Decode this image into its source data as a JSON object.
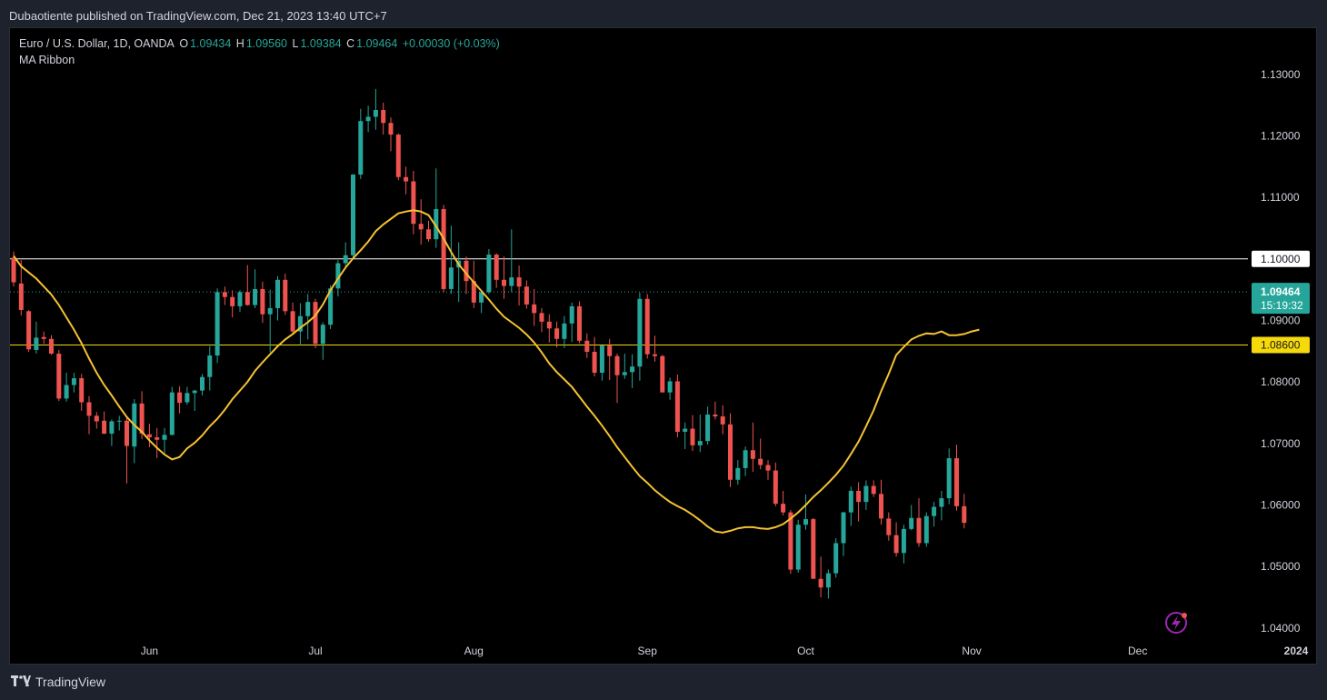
{
  "publisher_line": "Dubaotiente published on TradingView.com, Dec 21, 2023 13:40 UTC+7",
  "legend": {
    "symbol": "Euro / U.S. Dollar, 1D, OANDA",
    "o_label": "O",
    "o": "1.09434",
    "h_label": "H",
    "h": "1.09560",
    "l_label": "L",
    "l": "1.09384",
    "c_label": "C",
    "c": "1.09464",
    "change": "+0.00030 (+0.03%)",
    "indicator": "MA Ribbon"
  },
  "footer": {
    "brand": "TradingView",
    "logo": "tradingview-logo-icon"
  },
  "colors": {
    "background": "#000000",
    "frame": "#1e222d",
    "up": "#26a69a",
    "down": "#ef5350",
    "ma": "#f5c231",
    "hline_white": "#ffffff",
    "hline_yellow": "#f5d90a",
    "price_tag": "#26a69a"
  },
  "chart_data": {
    "type": "candlestick",
    "symbol": "EURUSD",
    "timeframe": "1D",
    "ylim": [
      1.0385,
      1.1375
    ],
    "yticks": [
      "1.13000",
      "1.12000",
      "1.11000",
      "1.10000",
      "1.09000",
      "1.08000",
      "1.07000",
      "1.06000",
      "1.05000",
      "1.04000"
    ],
    "xticks": [
      {
        "label": "Jun",
        "index": 18
      },
      {
        "label": "Jul",
        "index": 40
      },
      {
        "label": "Aug",
        "index": 61
      },
      {
        "label": "Sep",
        "index": 84
      },
      {
        "label": "Oct",
        "index": 105
      },
      {
        "label": "Nov",
        "index": 127
      },
      {
        "label": "Dec",
        "index": 149
      },
      {
        "label": "2024",
        "index": 170
      }
    ],
    "horizontal_lines": [
      {
        "price": 1.1,
        "label": "1.10000",
        "color": "#ffffff"
      },
      {
        "price": 1.086,
        "label": "1.08600",
        "color": "#f5d90a"
      }
    ],
    "last_price": {
      "price": 1.09464,
      "label": "1.09464",
      "countdown": "15:19:32"
    },
    "indicator": {
      "name": "MA Ribbon",
      "color": "#f5c231",
      "values": [
        1.1005,
        1.0988,
        1.0978,
        1.0968,
        1.0955,
        1.0942,
        1.0925,
        1.0905,
        1.0885,
        1.0863,
        1.0838,
        1.0815,
        1.0795,
        1.0778,
        1.076,
        1.0743,
        1.073,
        1.0719,
        1.0705,
        1.0693,
        1.0682,
        1.0674,
        1.0678,
        1.0692,
        1.0701,
        1.0713,
        1.0728,
        1.074,
        1.0755,
        1.0772,
        1.0786,
        1.08,
        1.0818,
        1.0832,
        1.0845,
        1.0858,
        1.0869,
        1.0878,
        1.0888,
        1.0897,
        1.0908,
        1.0926,
        1.0949,
        1.0968,
        1.0986,
        1.1001,
        1.1014,
        1.1028,
        1.1045,
        1.1056,
        1.1065,
        1.1074,
        1.1077,
        1.1079,
        1.1077,
        1.1071,
        1.1053,
        1.1033,
        1.1011,
        1.0991,
        1.0976,
        1.0962,
        1.0948,
        1.0934,
        1.0919,
        1.0906,
        1.0897,
        1.0888,
        1.0877,
        1.0864,
        1.0848,
        1.083,
        1.0816,
        1.0804,
        1.0792,
        1.0776,
        1.076,
        1.0745,
        1.0729,
        1.0712,
        1.0694,
        1.0678,
        1.0662,
        1.0647,
        1.0636,
        1.0624,
        1.0614,
        1.0605,
        1.0598,
        1.0592,
        1.0584,
        1.0575,
        1.0565,
        1.0557,
        1.0555,
        1.0558,
        1.0562,
        1.0564,
        1.0564,
        1.0562,
        1.0561,
        1.0564,
        1.0569,
        1.0578,
        1.0588,
        1.06,
        1.0613,
        1.0624,
        1.0636,
        1.0649,
        1.0664,
        1.0683,
        1.0703,
        1.0728,
        1.0754,
        1.0785,
        1.0813,
        1.0844,
        1.0857,
        1.0869,
        1.0875,
        1.0879,
        1.0878,
        1.0882,
        1.0876,
        1.0876,
        1.0878,
        1.0882,
        1.0885
      ]
    },
    "candles": [
      {
        "o": 1.1002,
        "h": 1.1012,
        "l": 1.0955,
        "c": 1.0962
      },
      {
        "o": 1.096,
        "h": 1.0998,
        "l": 1.0908,
        "c": 1.0917
      },
      {
        "o": 1.0915,
        "h": 1.0917,
        "l": 1.0849,
        "c": 1.0853
      },
      {
        "o": 1.0852,
        "h": 1.0898,
        "l": 1.0846,
        "c": 1.0872
      },
      {
        "o": 1.0873,
        "h": 1.0882,
        "l": 1.0862,
        "c": 1.087
      },
      {
        "o": 1.087,
        "h": 1.0876,
        "l": 1.0844,
        "c": 1.0846
      },
      {
        "o": 1.0846,
        "h": 1.0852,
        "l": 1.0769,
        "c": 1.0773
      },
      {
        "o": 1.0773,
        "h": 1.0815,
        "l": 1.0768,
        "c": 1.0795
      },
      {
        "o": 1.0795,
        "h": 1.0815,
        "l": 1.0783,
        "c": 1.0806
      },
      {
        "o": 1.0806,
        "h": 1.0813,
        "l": 1.0753,
        "c": 1.0767
      },
      {
        "o": 1.0767,
        "h": 1.0777,
        "l": 1.0715,
        "c": 1.0745
      },
      {
        "o": 1.0745,
        "h": 1.0751,
        "l": 1.0724,
        "c": 1.0736
      },
      {
        "o": 1.0737,
        "h": 1.0752,
        "l": 1.0715,
        "c": 1.0716
      },
      {
        "o": 1.0716,
        "h": 1.0739,
        "l": 1.0696,
        "c": 1.0736
      },
      {
        "o": 1.0736,
        "h": 1.0745,
        "l": 1.0721,
        "c": 1.0737
      },
      {
        "o": 1.0737,
        "h": 1.0742,
        "l": 1.0635,
        "c": 1.0696
      },
      {
        "o": 1.0695,
        "h": 1.0772,
        "l": 1.0668,
        "c": 1.0765
      },
      {
        "o": 1.0765,
        "h": 1.0785,
        "l": 1.0707,
        "c": 1.0716
      },
      {
        "o": 1.0715,
        "h": 1.0732,
        "l": 1.0694,
        "c": 1.071
      },
      {
        "o": 1.071,
        "h": 1.0725,
        "l": 1.0676,
        "c": 1.0706
      },
      {
        "o": 1.0706,
        "h": 1.0725,
        "l": 1.0681,
        "c": 1.0714
      },
      {
        "o": 1.0714,
        "h": 1.0792,
        "l": 1.0713,
        "c": 1.0783
      },
      {
        "o": 1.0783,
        "h": 1.0793,
        "l": 1.0749,
        "c": 1.0766
      },
      {
        "o": 1.0767,
        "h": 1.0792,
        "l": 1.0763,
        "c": 1.0782
      },
      {
        "o": 1.0782,
        "h": 1.0787,
        "l": 1.0753,
        "c": 1.0786
      },
      {
        "o": 1.0786,
        "h": 1.0813,
        "l": 1.0778,
        "c": 1.0808
      },
      {
        "o": 1.0808,
        "h": 1.0858,
        "l": 1.0786,
        "c": 1.0843
      },
      {
        "o": 1.0843,
        "h": 1.0952,
        "l": 1.0831,
        "c": 1.0946
      },
      {
        "o": 1.0946,
        "h": 1.0955,
        "l": 1.0925,
        "c": 1.0938
      },
      {
        "o": 1.0938,
        "h": 1.0949,
        "l": 1.0905,
        "c": 1.0923
      },
      {
        "o": 1.0923,
        "h": 1.0949,
        "l": 1.0914,
        "c": 1.0946
      },
      {
        "o": 1.0946,
        "h": 1.099,
        "l": 1.0924,
        "c": 1.0925
      },
      {
        "o": 1.0925,
        "h": 1.0983,
        "l": 1.092,
        "c": 1.0951
      },
      {
        "o": 1.0951,
        "h": 1.0963,
        "l": 1.0896,
        "c": 1.091
      },
      {
        "o": 1.091,
        "h": 1.095,
        "l": 1.0848,
        "c": 1.092
      },
      {
        "o": 1.092,
        "h": 1.0972,
        "l": 1.09,
        "c": 1.0966
      },
      {
        "o": 1.0966,
        "h": 1.0976,
        "l": 1.0909,
        "c": 1.0915
      },
      {
        "o": 1.0915,
        "h": 1.0929,
        "l": 1.0878,
        "c": 1.0882
      },
      {
        "o": 1.0882,
        "h": 1.0928,
        "l": 1.086,
        "c": 1.0907
      },
      {
        "o": 1.0907,
        "h": 1.0943,
        "l": 1.0869,
        "c": 1.093
      },
      {
        "o": 1.093,
        "h": 1.0935,
        "l": 1.0855,
        "c": 1.0862
      },
      {
        "o": 1.0862,
        "h": 1.0897,
        "l": 1.0836,
        "c": 1.0893
      },
      {
        "o": 1.0893,
        "h": 1.0957,
        "l": 1.0886,
        "c": 1.0952
      },
      {
        "o": 1.0952,
        "h": 1.0998,
        "l": 1.0939,
        "c": 1.0993
      },
      {
        "o": 1.0993,
        "h": 1.1027,
        "l": 1.0986,
        "c": 1.1006
      },
      {
        "o": 1.1006,
        "h": 1.1138,
        "l": 1.1,
        "c": 1.1137
      },
      {
        "o": 1.1137,
        "h": 1.1244,
        "l": 1.113,
        "c": 1.1224
      },
      {
        "o": 1.1224,
        "h": 1.1249,
        "l": 1.1206,
        "c": 1.1231
      },
      {
        "o": 1.1231,
        "h": 1.1276,
        "l": 1.121,
        "c": 1.1242
      },
      {
        "o": 1.1242,
        "h": 1.1254,
        "l": 1.1202,
        "c": 1.1221
      },
      {
        "o": 1.1221,
        "h": 1.123,
        "l": 1.1175,
        "c": 1.1202
      },
      {
        "o": 1.1202,
        "h": 1.1204,
        "l": 1.1128,
        "c": 1.1133
      },
      {
        "o": 1.1133,
        "h": 1.115,
        "l": 1.1105,
        "c": 1.1126
      },
      {
        "o": 1.1126,
        "h": 1.1143,
        "l": 1.104,
        "c": 1.1057
      },
      {
        "o": 1.1057,
        "h": 1.1097,
        "l": 1.1023,
        "c": 1.1048
      },
      {
        "o": 1.1048,
        "h": 1.1062,
        "l": 1.1028,
        "c": 1.1032
      },
      {
        "o": 1.1032,
        "h": 1.1147,
        "l": 1.1018,
        "c": 1.1081
      },
      {
        "o": 1.1081,
        "h": 1.1088,
        "l": 1.0946,
        "c": 1.0951
      },
      {
        "o": 1.0951,
        "h": 1.1054,
        "l": 1.0943,
        "c": 1.0986
      },
      {
        "o": 1.0986,
        "h": 1.1027,
        "l": 1.093,
        "c": 1.0997
      },
      {
        "o": 1.0997,
        "h": 1.1004,
        "l": 1.0943,
        "c": 1.0964
      },
      {
        "o": 1.0964,
        "h": 1.0997,
        "l": 1.092,
        "c": 1.0929
      },
      {
        "o": 1.0929,
        "h": 1.095,
        "l": 1.0912,
        "c": 1.0946
      },
      {
        "o": 1.0946,
        "h": 1.1016,
        "l": 1.0943,
        "c": 1.1007
      },
      {
        "o": 1.1007,
        "h": 1.1009,
        "l": 1.0953,
        "c": 1.0966
      },
      {
        "o": 1.0966,
        "h": 1.1004,
        "l": 1.0935,
        "c": 1.0956
      },
      {
        "o": 1.0956,
        "h": 1.1048,
        "l": 1.0946,
        "c": 1.097
      },
      {
        "o": 1.097,
        "h": 1.0989,
        "l": 1.0924,
        "c": 1.0955
      },
      {
        "o": 1.0955,
        "h": 1.0965,
        "l": 1.0919,
        "c": 1.0926
      },
      {
        "o": 1.0926,
        "h": 1.0951,
        "l": 1.0891,
        "c": 1.0912
      },
      {
        "o": 1.0912,
        "h": 1.092,
        "l": 1.0881,
        "c": 1.0898
      },
      {
        "o": 1.0898,
        "h": 1.091,
        "l": 1.0864,
        "c": 1.0887
      },
      {
        "o": 1.0887,
        "h": 1.0898,
        "l": 1.0856,
        "c": 1.087
      },
      {
        "o": 1.087,
        "h": 1.0907,
        "l": 1.0855,
        "c": 1.0895
      },
      {
        "o": 1.0895,
        "h": 1.0929,
        "l": 1.0865,
        "c": 1.0923
      },
      {
        "o": 1.0923,
        "h": 1.0931,
        "l": 1.0863,
        "c": 1.0867
      },
      {
        "o": 1.0867,
        "h": 1.0879,
        "l": 1.0839,
        "c": 1.0849
      },
      {
        "o": 1.0849,
        "h": 1.0873,
        "l": 1.0809,
        "c": 1.0815
      },
      {
        "o": 1.0815,
        "h": 1.0859,
        "l": 1.0802,
        "c": 1.0859
      },
      {
        "o": 1.0859,
        "h": 1.087,
        "l": 1.0803,
        "c": 1.0842
      },
      {
        "o": 1.0842,
        "h": 1.0846,
        "l": 1.0766,
        "c": 1.0811
      },
      {
        "o": 1.0811,
        "h": 1.0846,
        "l": 1.0805,
        "c": 1.0816
      },
      {
        "o": 1.0816,
        "h": 1.0845,
        "l": 1.079,
        "c": 1.0825
      },
      {
        "o": 1.0825,
        "h": 1.0945,
        "l": 1.0802,
        "c": 1.0935
      },
      {
        "o": 1.0935,
        "h": 1.0943,
        "l": 1.0838,
        "c": 1.0845
      },
      {
        "o": 1.0845,
        "h": 1.0875,
        "l": 1.0833,
        "c": 1.0842
      },
      {
        "o": 1.0842,
        "h": 1.0844,
        "l": 1.0783,
        "c": 1.0783
      },
      {
        "o": 1.0783,
        "h": 1.0807,
        "l": 1.0771,
        "c": 1.0801
      },
      {
        "o": 1.0801,
        "h": 1.0812,
        "l": 1.071,
        "c": 1.0719
      },
      {
        "o": 1.0719,
        "h": 1.0734,
        "l": 1.0691,
        "c": 1.0724
      },
      {
        "o": 1.0724,
        "h": 1.0746,
        "l": 1.0688,
        "c": 1.0697
      },
      {
        "o": 1.0697,
        "h": 1.0747,
        "l": 1.0686,
        "c": 1.0704
      },
      {
        "o": 1.0704,
        "h": 1.076,
        "l": 1.0698,
        "c": 1.0747
      },
      {
        "o": 1.0747,
        "h": 1.0768,
        "l": 1.0739,
        "c": 1.0744
      },
      {
        "o": 1.0744,
        "h": 1.0762,
        "l": 1.0715,
        "c": 1.0731
      },
      {
        "o": 1.0731,
        "h": 1.0749,
        "l": 1.0629,
        "c": 1.0641
      },
      {
        "o": 1.0641,
        "h": 1.0673,
        "l": 1.0633,
        "c": 1.066
      },
      {
        "o": 1.066,
        "h": 1.0695,
        "l": 1.0647,
        "c": 1.0689
      },
      {
        "o": 1.0689,
        "h": 1.0734,
        "l": 1.0654,
        "c": 1.0675
      },
      {
        "o": 1.0675,
        "h": 1.0708,
        "l": 1.0658,
        "c": 1.0665
      },
      {
        "o": 1.0665,
        "h": 1.0673,
        "l": 1.0641,
        "c": 1.0656
      },
      {
        "o": 1.0656,
        "h": 1.0669,
        "l": 1.0598,
        "c": 1.0602
      },
      {
        "o": 1.0602,
        "h": 1.0623,
        "l": 1.0583,
        "c": 1.0588
      },
      {
        "o": 1.0588,
        "h": 1.0592,
        "l": 1.0488,
        "c": 1.0495
      },
      {
        "o": 1.0495,
        "h": 1.0576,
        "l": 1.049,
        "c": 1.0568
      },
      {
        "o": 1.0568,
        "h": 1.0617,
        "l": 1.056,
        "c": 1.0577
      },
      {
        "o": 1.0577,
        "h": 1.0579,
        "l": 1.048,
        "c": 1.048
      },
      {
        "o": 1.048,
        "h": 1.0516,
        "l": 1.045,
        "c": 1.0466
      },
      {
        "o": 1.0466,
        "h": 1.0495,
        "l": 1.0448,
        "c": 1.0489
      },
      {
        "o": 1.0489,
        "h": 1.0546,
        "l": 1.0482,
        "c": 1.0538
      },
      {
        "o": 1.0538,
        "h": 1.0589,
        "l": 1.0517,
        "c": 1.0588
      },
      {
        "o": 1.0588,
        "h": 1.063,
        "l": 1.0566,
        "c": 1.0623
      },
      {
        "o": 1.0623,
        "h": 1.0637,
        "l": 1.0573,
        "c": 1.0605
      },
      {
        "o": 1.0605,
        "h": 1.064,
        "l": 1.0592,
        "c": 1.0631
      },
      {
        "o": 1.0631,
        "h": 1.064,
        "l": 1.0613,
        "c": 1.0618
      },
      {
        "o": 1.0618,
        "h": 1.0641,
        "l": 1.0568,
        "c": 1.0578
      },
      {
        "o": 1.0578,
        "h": 1.0588,
        "l": 1.0542,
        "c": 1.0551
      },
      {
        "o": 1.0551,
        "h": 1.0572,
        "l": 1.0516,
        "c": 1.0522
      },
      {
        "o": 1.0522,
        "h": 1.0568,
        "l": 1.0505,
        "c": 1.0561
      },
      {
        "o": 1.0561,
        "h": 1.06,
        "l": 1.0559,
        "c": 1.0579
      },
      {
        "o": 1.0579,
        "h": 1.0611,
        "l": 1.0532,
        "c": 1.0538
      },
      {
        "o": 1.0538,
        "h": 1.0588,
        "l": 1.0532,
        "c": 1.0582
      },
      {
        "o": 1.0582,
        "h": 1.0605,
        "l": 1.0565,
        "c": 1.0597
      },
      {
        "o": 1.0597,
        "h": 1.0623,
        "l": 1.0575,
        "c": 1.0611
      },
      {
        "o": 1.0611,
        "h": 1.0692,
        "l": 1.0601,
        "c": 1.0676
      },
      {
        "o": 1.0676,
        "h": 1.0698,
        "l": 1.0591,
        "c": 1.0598
      },
      {
        "o": 1.0598,
        "h": 1.0618,
        "l": 1.0562,
        "c": 1.0571
      }
    ]
  }
}
